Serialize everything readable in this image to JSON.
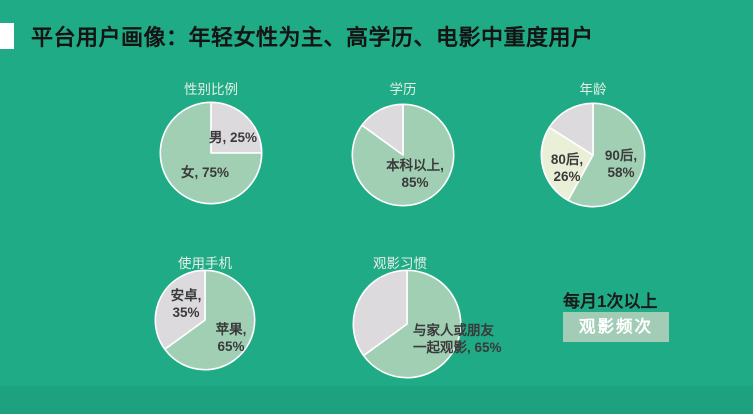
{
  "slide": {
    "title": "平台用户画像：年轻女性为主、高学历、电影中重度用户"
  },
  "colors": {
    "background": "#1fab86",
    "title_text": "#141414",
    "chart_title": "#e6eee7",
    "label_text": "#3a3a3a",
    "caption_text": "#1b1b1b",
    "pie_green": "#a1cfb4",
    "pie_gray": "#dcdadd",
    "pie_pale": "#eaf0d8",
    "slice_border": "#ffffff",
    "badge_bg": "#a3ccb6",
    "badge_text": "#ffffff",
    "accent_bar": "#ffffff"
  },
  "chart_data": [
    {
      "type": "pie",
      "title": "性别比例",
      "slices": [
        {
          "name": "男",
          "pct": 25,
          "color": "pie_gray",
          "label_lines": [
            "男, 25%"
          ]
        },
        {
          "name": "女",
          "pct": 75,
          "color": "pie_green",
          "label_lines": [
            "女, 75%"
          ]
        }
      ]
    },
    {
      "type": "pie",
      "title": "学历",
      "slices": [
        {
          "name": "本科以上",
          "pct": 85,
          "color": "pie_green",
          "label_lines": [
            "本科以上,",
            "85%"
          ]
        },
        {
          "name": "",
          "pct": 15,
          "color": "pie_gray",
          "label_lines": []
        }
      ]
    },
    {
      "type": "pie",
      "title": "年龄",
      "slices": [
        {
          "name": "90后",
          "pct": 58,
          "color": "pie_green",
          "label_lines": [
            "90后,",
            "58%"
          ]
        },
        {
          "name": "80后",
          "pct": 26,
          "color": "pie_pale",
          "label_lines": [
            "80后,",
            "26%"
          ]
        },
        {
          "name": "",
          "pct": 16,
          "color": "pie_gray",
          "label_lines": []
        }
      ]
    },
    {
      "type": "pie",
      "title": "使用手机",
      "slices": [
        {
          "name": "苹果",
          "pct": 65,
          "color": "pie_green",
          "label_lines": [
            "苹果,",
            "65%"
          ]
        },
        {
          "name": "安卓",
          "pct": 35,
          "color": "pie_gray",
          "label_lines": [
            "安卓,",
            "35%"
          ]
        }
      ]
    },
    {
      "type": "pie",
      "title": "观影习惯",
      "slices": [
        {
          "name": "与家人或朋友一起观影",
          "pct": 65,
          "color": "pie_green",
          "label_lines": [
            "与家人或朋友",
            "一起观影, 65%"
          ]
        },
        {
          "name": "",
          "pct": 35,
          "color": "pie_gray",
          "label_lines": []
        }
      ]
    }
  ],
  "frequency": {
    "caption": "每月1次以上",
    "badge": "观影频次"
  }
}
